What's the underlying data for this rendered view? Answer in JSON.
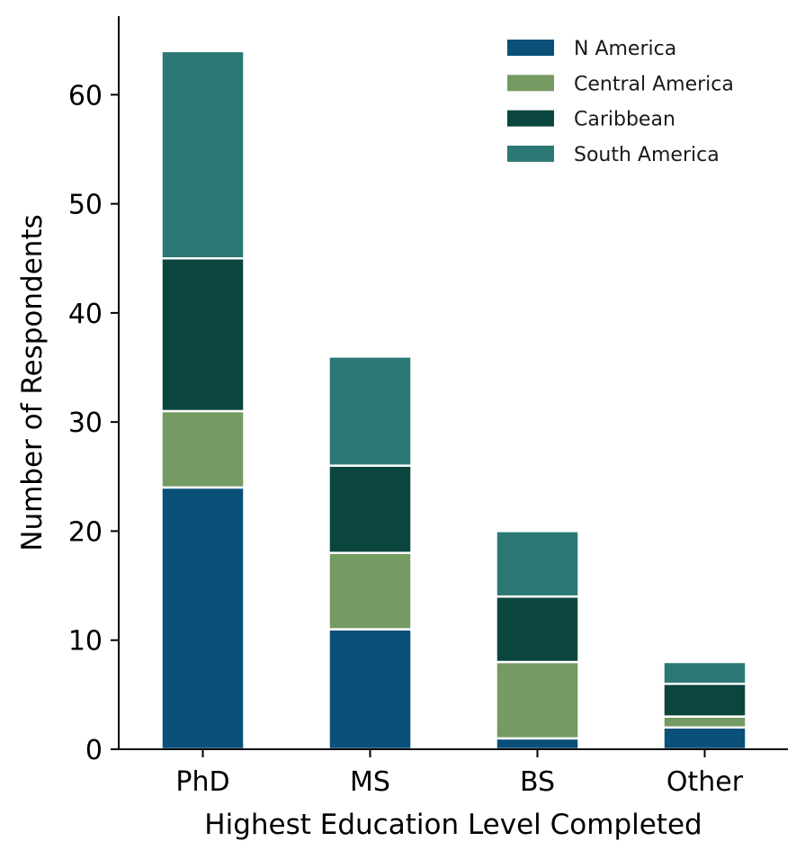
{
  "chart_data": {
    "type": "bar",
    "stacked": true,
    "categories": [
      "PhD",
      "MS",
      "BS",
      "Other"
    ],
    "series": [
      {
        "name": "N America",
        "color": "#0a5079",
        "values": [
          24,
          11,
          1,
          2
        ]
      },
      {
        "name": "Central America",
        "color": "#759a62",
        "values": [
          7,
          7,
          7,
          1
        ]
      },
      {
        "name": "Caribbean",
        "color": "#0a463d",
        "values": [
          14,
          8,
          6,
          3
        ]
      },
      {
        "name": "South America",
        "color": "#2b7874",
        "values": [
          19,
          10,
          6,
          2
        ]
      }
    ],
    "title": "",
    "xlabel": "Highest Education Level Completed",
    "ylabel": "Number of Respondents",
    "ylim": [
      0,
      67.2
    ],
    "yticks": [
      0,
      10,
      20,
      30,
      40,
      50,
      60
    ],
    "grid": false,
    "legend_position": "top-right"
  }
}
